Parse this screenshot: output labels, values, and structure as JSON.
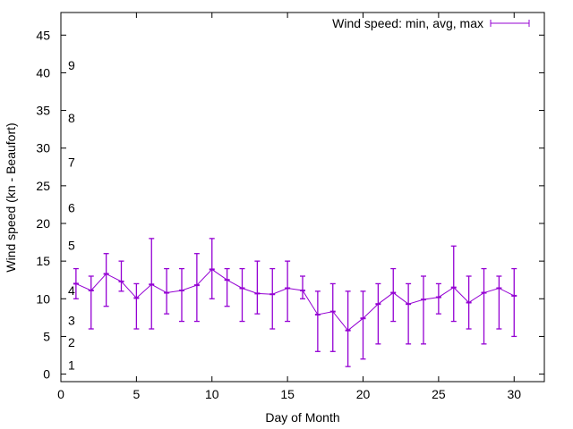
{
  "chart_data": {
    "type": "line",
    "title": "",
    "xlabel": "Day of Month",
    "ylabel": "Wind speed (kn - Beaufort)",
    "xlim": [
      0,
      32
    ],
    "ylim": [
      -1,
      48
    ],
    "xticks": [
      0,
      5,
      10,
      15,
      20,
      25,
      30
    ],
    "yticks": [
      0,
      5,
      10,
      15,
      20,
      25,
      30,
      35,
      40,
      45
    ],
    "grid": false,
    "legend_position": "top-right",
    "series": [
      {
        "name": "Wind speed: min, avg, max",
        "color": "#9400d3",
        "x": [
          1,
          2,
          3,
          4,
          5,
          6,
          7,
          8,
          9,
          10,
          11,
          12,
          13,
          14,
          15,
          16,
          17,
          18,
          19,
          20,
          21,
          22,
          23,
          24,
          25,
          26,
          27,
          28,
          29,
          30
        ],
        "avg": [
          12.0,
          11.1,
          13.3,
          12.3,
          10.1,
          11.9,
          10.8,
          11.1,
          11.8,
          13.9,
          12.5,
          11.4,
          10.7,
          10.6,
          11.4,
          11.1,
          7.9,
          8.3,
          5.8,
          7.4,
          9.3,
          10.8,
          9.3,
          9.9,
          10.2,
          11.5,
          9.5,
          10.8,
          11.4,
          10.4
        ],
        "min": [
          10,
          6,
          9,
          11,
          6,
          6,
          8,
          7,
          7,
          10,
          9,
          7,
          8,
          6,
          7,
          10,
          3,
          3,
          1,
          2,
          4,
          7,
          4,
          4,
          8,
          7,
          6,
          4,
          6,
          5
        ],
        "max": [
          14,
          13,
          16,
          15,
          12,
          18,
          14,
          14,
          16,
          18,
          14,
          14,
          15,
          14,
          15,
          13,
          11,
          12,
          11,
          11,
          12,
          14,
          12,
          13,
          12,
          17,
          13,
          14,
          13,
          14
        ]
      }
    ],
    "annotations": [
      {
        "text": "1",
        "y": 1.2
      },
      {
        "text": "2",
        "y": 4.2
      },
      {
        "text": "3",
        "y": 7.1
      },
      {
        "text": "4",
        "y": 11.1
      },
      {
        "text": "5",
        "y": 17.1
      },
      {
        "text": "6",
        "y": 22.1
      },
      {
        "text": "7",
        "y": 28.1
      },
      {
        "text": "8",
        "y": 34.0
      },
      {
        "text": "9",
        "y": 41.0
      }
    ]
  }
}
